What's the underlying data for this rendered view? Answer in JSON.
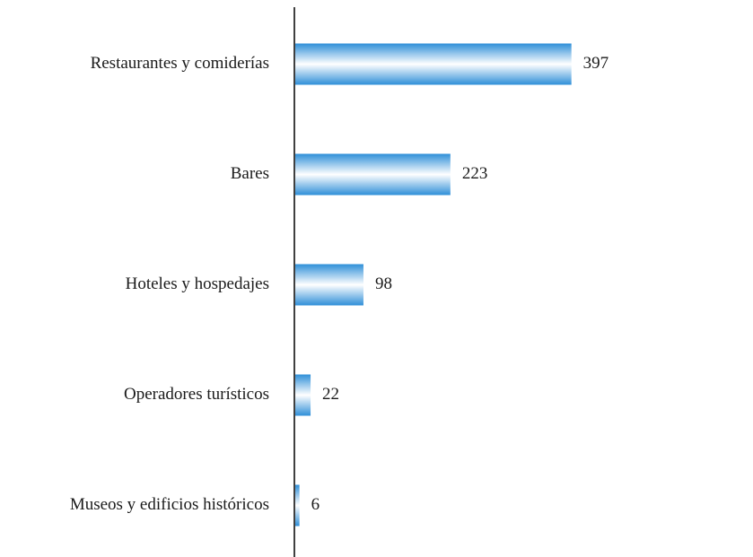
{
  "chart_data": {
    "type": "barh",
    "categories": [
      "Restaurantes y comiderías",
      "Bares",
      "Hoteles y hospedajes",
      "Operadores turísticos",
      "Museos y edificios históricos"
    ],
    "values": [
      397,
      223,
      98,
      22,
      6
    ],
    "color": "#2f8fd8",
    "xlim": [
      0,
      600
    ]
  }
}
